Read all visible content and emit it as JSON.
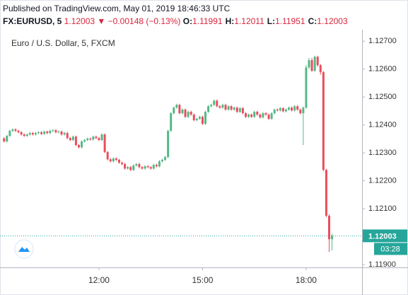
{
  "chart_data": {
    "type": "candlestick",
    "header": "Published on TradingView.com, May 01, 2019 18:46:33 UTC",
    "symbol": "FX:EURUSD, 5",
    "quote": 1.12003,
    "change": "−0.00148 (−0.13%)",
    "ohlc": [
      {
        "label": "O:",
        "value": 1.11991
      },
      {
        "label": "H:",
        "value": 1.12011
      },
      {
        "label": "L:",
        "value": 1.11951
      },
      {
        "label": "C:",
        "value": 1.12003
      }
    ],
    "title": "Euro / U.S. Dollar, 5, FXCM",
    "last_price": {
      "value": 1.12003,
      "label": "1.12003"
    },
    "countdown": "03:28",
    "up_color": "#53b987",
    "down_color": "#eb4d5c",
    "price_line_color": "#26a69a",
    "grid": false,
    "ylim": [
      1.1189,
      1.12741
    ],
    "yticks": [
      {
        "value": 1.119,
        "label": "1.11900"
      },
      {
        "value": 1.121,
        "label": "1.12100"
      },
      {
        "value": 1.122,
        "label": "1.12200"
      },
      {
        "value": 1.123,
        "label": "1.12300"
      },
      {
        "value": 1.124,
        "label": "1.12400"
      },
      {
        "value": 1.125,
        "label": "1.12500"
      },
      {
        "value": 1.126,
        "label": "1.12600"
      },
      {
        "value": 1.127,
        "label": "1.12700"
      }
    ],
    "categories": [
      null,
      null,
      null,
      null,
      null,
      null,
      null,
      null,
      null,
      null,
      null,
      null,
      null,
      null,
      null,
      null,
      null,
      null,
      null,
      null,
      null,
      null,
      null,
      null,
      null,
      null,
      null,
      null,
      null,
      null,
      null,
      null,
      null,
      "12:00",
      null,
      null,
      null,
      null,
      null,
      null,
      null,
      null,
      null,
      null,
      null,
      null,
      null,
      null,
      null,
      null,
      null,
      null,
      null,
      null,
      null,
      null,
      null,
      null,
      null,
      null,
      null,
      null,
      null,
      null,
      null,
      null,
      null,
      null,
      null,
      "15:00",
      null,
      null,
      null,
      null,
      null,
      null,
      null,
      null,
      null,
      null,
      null,
      null,
      null,
      null,
      null,
      null,
      null,
      null,
      null,
      null,
      null,
      null,
      null,
      null,
      null,
      null,
      null,
      null,
      null,
      null,
      null,
      null,
      null,
      null,
      null,
      "18:00",
      null,
      null,
      null,
      null,
      null,
      null,
      null,
      null,
      null
    ],
    "open": [
      1.12352,
      1.12341,
      1.12361,
      1.12379,
      1.12384,
      1.12379,
      1.12374,
      1.12366,
      1.12361,
      1.12366,
      1.12371,
      1.12366,
      1.12371,
      1.12374,
      1.12368,
      1.12376,
      1.12371,
      1.12379,
      1.12381,
      1.12374,
      1.12376,
      1.12366,
      1.12371,
      1.12353,
      1.12346,
      1.12358,
      1.12328,
      1.1232,
      1.12341,
      1.12346,
      1.12351,
      1.12348,
      1.12358,
      1.12353,
      1.12346,
      1.12366,
      1.12303,
      1.12277,
      1.1227,
      1.1228,
      1.12275,
      1.12265,
      1.1226,
      1.12244,
      1.12249,
      1.12239,
      1.12255,
      1.1226,
      1.12249,
      1.12244,
      1.12252,
      1.12249,
      1.12244,
      1.12257,
      1.12252,
      1.1227,
      1.12275,
      1.12285,
      1.12379,
      1.12442,
      1.12462,
      1.12472,
      1.12442,
      1.12455,
      1.12429,
      1.12447,
      1.12437,
      1.12417,
      1.12422,
      1.12429,
      1.12404,
      1.12447,
      1.12467,
      1.12472,
      1.12487,
      1.12467,
      1.12462,
      1.12472,
      1.12455,
      1.12467,
      1.12455,
      1.12462,
      1.12447,
      1.1246,
      1.12442,
      1.12429,
      1.12437,
      1.12429,
      1.12447,
      1.12437,
      1.12427,
      1.12442,
      1.12437,
      1.12422,
      1.12442,
      1.12455,
      1.12452,
      1.1246,
      1.12449,
      1.12455,
      1.12462,
      1.12452,
      1.12467,
      1.12455,
      1.12442,
      1.12462,
      1.12606,
      1.12632,
      1.12594,
      1.12644,
      1.12614,
      1.12589,
      1.12239,
      1.12075,
      1.11991
    ],
    "high": [
      1.12356,
      1.12365,
      1.12383,
      1.12388,
      1.12388,
      1.12383,
      1.12378,
      1.1237,
      1.1237,
      1.12375,
      1.12375,
      1.12375,
      1.12378,
      1.12378,
      1.1238,
      1.1238,
      1.12383,
      1.12385,
      1.12385,
      1.1238,
      1.1238,
      1.12375,
      1.12375,
      1.12357,
      1.12362,
      1.12362,
      1.12332,
      1.12345,
      1.1235,
      1.12355,
      1.12355,
      1.12362,
      1.12362,
      1.12357,
      1.1237,
      1.1237,
      1.12307,
      1.12281,
      1.12284,
      1.12284,
      1.12279,
      1.12269,
      1.12264,
      1.12253,
      1.12253,
      1.12259,
      1.12264,
      1.12264,
      1.12253,
      1.12256,
      1.12256,
      1.12253,
      1.12261,
      1.12261,
      1.12274,
      1.12279,
      1.12289,
      1.12383,
      1.12446,
      1.12466,
      1.12476,
      1.12476,
      1.12459,
      1.12459,
      1.12451,
      1.12451,
      1.12441,
      1.12426,
      1.12433,
      1.12433,
      1.12451,
      1.12471,
      1.12476,
      1.12491,
      1.12491,
      1.12471,
      1.12476,
      1.12476,
      1.12471,
      1.12471,
      1.12466,
      1.12466,
      1.12464,
      1.12464,
      1.12446,
      1.12441,
      1.12441,
      1.12451,
      1.12451,
      1.12441,
      1.12446,
      1.12446,
      1.12441,
      1.12446,
      1.12459,
      1.12459,
      1.12464,
      1.12464,
      1.12459,
      1.12466,
      1.12466,
      1.12471,
      1.12471,
      1.12459,
      1.12466,
      1.12615,
      1.1264,
      1.1264,
      1.12648,
      1.12648,
      1.12618,
      1.12593,
      1.12243,
      1.1208,
      1.12011
    ],
    "low": [
      1.12337,
      1.12337,
      1.12357,
      1.12375,
      1.12375,
      1.1237,
      1.12362,
      1.12357,
      1.12357,
      1.12362,
      1.12362,
      1.12362,
      1.12367,
      1.12364,
      1.12364,
      1.12367,
      1.12367,
      1.12375,
      1.1237,
      1.1237,
      1.12362,
      1.12362,
      1.12349,
      1.12342,
      1.12342,
      1.12324,
      1.12316,
      1.12316,
      1.12337,
      1.12342,
      1.12344,
      1.12344,
      1.12349,
      1.12342,
      1.12342,
      1.12299,
      1.12273,
      1.12266,
      1.12266,
      1.12271,
      1.12261,
      1.12256,
      1.1224,
      1.1224,
      1.12235,
      1.12235,
      1.12251,
      1.12245,
      1.1224,
      1.1224,
      1.12245,
      1.1224,
      1.1224,
      1.12248,
      1.12248,
      1.12266,
      1.12271,
      1.12281,
      1.12375,
      1.12438,
      1.12458,
      1.12438,
      1.12438,
      1.12425,
      1.12425,
      1.12433,
      1.12413,
      1.12413,
      1.12418,
      1.124,
      1.124,
      1.12443,
      1.12463,
      1.12468,
      1.12463,
      1.12458,
      1.12458,
      1.12451,
      1.12451,
      1.12451,
      1.12451,
      1.12443,
      1.12443,
      1.12438,
      1.12425,
      1.12425,
      1.12425,
      1.12425,
      1.12433,
      1.12423,
      1.12423,
      1.12433,
      1.12418,
      1.12418,
      1.12438,
      1.12448,
      1.12448,
      1.12445,
      1.12445,
      1.12451,
      1.12448,
      1.12448,
      1.12451,
      1.12438,
      1.12328,
      1.12458,
      1.126,
      1.1259,
      1.1259,
      1.12608,
      1.1258,
      1.12235,
      1.1207,
      1.11945,
      1.11951
    ],
    "close": [
      1.12341,
      1.12361,
      1.12379,
      1.12384,
      1.12379,
      1.12374,
      1.12366,
      1.12361,
      1.12366,
      1.12371,
      1.12366,
      1.12371,
      1.12374,
      1.12368,
      1.12376,
      1.12371,
      1.12379,
      1.12381,
      1.12374,
      1.12376,
      1.12366,
      1.12371,
      1.12353,
      1.12346,
      1.12358,
      1.12328,
      1.1232,
      1.12341,
      1.12346,
      1.12351,
      1.12348,
      1.12358,
      1.12353,
      1.12346,
      1.12366,
      1.12303,
      1.12277,
      1.1227,
      1.1228,
      1.12275,
      1.12265,
      1.1226,
      1.12244,
      1.12249,
      1.12239,
      1.12255,
      1.1226,
      1.12249,
      1.12244,
      1.12252,
      1.12249,
      1.12244,
      1.12257,
      1.12252,
      1.1227,
      1.12275,
      1.12285,
      1.12379,
      1.12442,
      1.12462,
      1.12472,
      1.12442,
      1.12455,
      1.12429,
      1.12447,
      1.12437,
      1.12417,
      1.12422,
      1.12429,
      1.12404,
      1.12447,
      1.12467,
      1.12472,
      1.12487,
      1.12467,
      1.12462,
      1.12472,
      1.12455,
      1.12467,
      1.12455,
      1.12462,
      1.12447,
      1.1246,
      1.12442,
      1.12429,
      1.12437,
      1.12429,
      1.12447,
      1.12437,
      1.12427,
      1.12442,
      1.12437,
      1.12422,
      1.12442,
      1.12455,
      1.12452,
      1.1246,
      1.12449,
      1.12455,
      1.12462,
      1.12452,
      1.12467,
      1.12455,
      1.12442,
      1.12462,
      1.12606,
      1.12632,
      1.12594,
      1.12644,
      1.12614,
      1.12589,
      1.12239,
      1.12075,
      1.11991,
      1.12003
    ]
  }
}
